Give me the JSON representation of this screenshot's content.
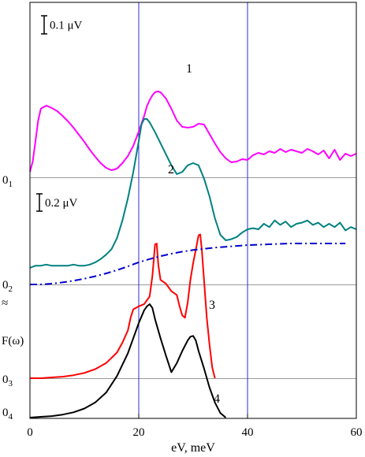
{
  "chart_data": {
    "type": "line",
    "xlabel": "eV, meV",
    "ylabel": "F(ω)",
    "xlim": [
      0,
      60
    ],
    "x_ticks": [
      "0",
      "20",
      "40",
      "60"
    ],
    "vertical_lines_at": [
      20,
      40
    ],
    "scale_bars": [
      {
        "text": "0.1 μV",
        "applies_to": "1"
      },
      {
        "text": "0.2 μV",
        "applies_to": "2"
      }
    ],
    "baseline_labels": [
      {
        "id": "1",
        "text": "0",
        "subscript": "1"
      },
      {
        "id": "2",
        "text": "0",
        "subscript": "2"
      },
      {
        "id": "3",
        "text": "0",
        "subscript": "3"
      },
      {
        "id": "4",
        "text": "0",
        "subscript": "4"
      }
    ],
    "break_mark": "≈",
    "series": [
      {
        "id": "1",
        "label": "1",
        "color": "#ff00ff",
        "style": "solid",
        "x": [
          0,
          0.5,
          1,
          1.5,
          2,
          3,
          4,
          5,
          6,
          7,
          8,
          9,
          10,
          11,
          12,
          13,
          14,
          15,
          16,
          17,
          18,
          19,
          20,
          21,
          21.5,
          22,
          22.5,
          23,
          23.5,
          24,
          25,
          26,
          27,
          28,
          29,
          30,
          31,
          32,
          33,
          34,
          35,
          36,
          37,
          38,
          39,
          40,
          41,
          42,
          43,
          44,
          45,
          46,
          47,
          48,
          49,
          50,
          51,
          52,
          53,
          54,
          55,
          56,
          57,
          58,
          59,
          60
        ],
        "y": [
          0.07,
          0.2,
          0.45,
          0.72,
          0.87,
          0.91,
          0.88,
          0.84,
          0.78,
          0.71,
          0.63,
          0.54,
          0.45,
          0.35,
          0.26,
          0.18,
          0.12,
          0.09,
          0.11,
          0.18,
          0.27,
          0.4,
          0.58,
          0.78,
          0.9,
          0.98,
          1.04,
          1.08,
          1.09,
          1.08,
          1.0,
          0.87,
          0.72,
          0.64,
          0.63,
          0.64,
          0.68,
          0.67,
          0.55,
          0.43,
          0.32,
          0.24,
          0.19,
          0.2,
          0.23,
          0.22,
          0.28,
          0.31,
          0.29,
          0.33,
          0.31,
          0.36,
          0.32,
          0.35,
          0.33,
          0.31,
          0.36,
          0.33,
          0.29,
          0.34,
          0.24,
          0.35,
          0.22,
          0.3,
          0.27,
          0.3
        ]
      },
      {
        "id": "2",
        "label": "2",
        "color": "#008080",
        "style": "solid",
        "x": [
          0,
          1,
          2,
          3,
          4,
          5,
          6,
          7,
          8,
          9,
          10,
          11,
          12,
          13,
          14,
          15,
          16,
          17,
          18,
          19,
          20,
          20.5,
          21,
          21.5,
          22,
          23,
          24,
          25,
          26,
          27,
          28,
          29,
          30,
          31,
          32,
          33,
          34,
          35,
          36,
          37,
          38,
          39,
          40,
          41,
          42,
          43,
          44,
          45,
          46,
          47,
          48,
          49,
          50,
          51,
          52,
          53,
          54,
          55,
          56,
          57,
          58,
          59,
          60
        ],
        "y": [
          0.15,
          0.17,
          0.17,
          0.18,
          0.17,
          0.17,
          0.17,
          0.17,
          0.18,
          0.17,
          0.17,
          0.18,
          0.2,
          0.23,
          0.27,
          0.32,
          0.42,
          0.58,
          0.78,
          1.02,
          1.3,
          1.45,
          1.5,
          1.5,
          1.47,
          1.38,
          1.28,
          1.18,
          1.08,
          1.0,
          1.02,
          1.08,
          1.1,
          1.08,
          0.96,
          0.8,
          0.6,
          0.45,
          0.4,
          0.41,
          0.43,
          0.47,
          0.5,
          0.51,
          0.5,
          0.55,
          0.52,
          0.58,
          0.54,
          0.57,
          0.52,
          0.55,
          0.56,
          0.58,
          0.54,
          0.56,
          0.52,
          0.55,
          0.52,
          0.56,
          0.49,
          0.52,
          0.5
        ]
      },
      {
        "id": "3",
        "label": "3",
        "color": "#ff0000",
        "style": "solid",
        "x": [
          0,
          2,
          4,
          6,
          8,
          10,
          12,
          14,
          16,
          17,
          18,
          18.5,
          19,
          20,
          21,
          22,
          22.5,
          23,
          23.3,
          23.6,
          24,
          25,
          26,
          27,
          27.5,
          28,
          28.5,
          29,
          29.5,
          30,
          30.5,
          31,
          31.3,
          31.6,
          32,
          32.5,
          33,
          33.5,
          34
        ],
        "y": [
          0,
          0,
          0.01,
          0.02,
          0.04,
          0.07,
          0.12,
          0.2,
          0.34,
          0.47,
          0.63,
          0.8,
          0.91,
          0.95,
          0.98,
          1.08,
          1.35,
          1.77,
          1.78,
          1.5,
          1.3,
          1.25,
          1.15,
          1.1,
          0.95,
          0.83,
          0.8,
          1.0,
          1.3,
          1.52,
          1.7,
          1.89,
          1.9,
          1.7,
          1.3,
          0.8,
          0.45,
          0.15,
          0.0
        ]
      },
      {
        "id": "4",
        "label": "4",
        "color": "#000000",
        "style": "solid",
        "x": [
          0,
          2,
          4,
          6,
          8,
          10,
          12,
          14,
          16,
          18,
          19,
          20,
          21,
          21.5,
          22,
          22.5,
          23,
          24,
          25,
          26,
          27,
          28,
          29,
          29.5,
          30,
          30.5,
          31,
          32,
          33,
          34,
          35,
          36
        ],
        "y": [
          0,
          0.01,
          0.02,
          0.04,
          0.07,
          0.12,
          0.2,
          0.33,
          0.55,
          0.85,
          1.05,
          1.25,
          1.42,
          1.47,
          1.5,
          1.45,
          1.3,
          1.05,
          0.82,
          0.6,
          0.72,
          0.88,
          1.02,
          1.07,
          1.08,
          1.02,
          0.88,
          0.65,
          0.4,
          0.2,
          0.06,
          0.0
        ]
      },
      {
        "id": "F",
        "label": "",
        "color": "#0000cc",
        "style": "dash-dot",
        "x": [
          0,
          2,
          4,
          6,
          8,
          10,
          12,
          14,
          16,
          18,
          20,
          22,
          24,
          26,
          28,
          30,
          32,
          34,
          36,
          38,
          40,
          42,
          44,
          46,
          48,
          50,
          52,
          54,
          56,
          58
        ],
        "y": [
          0.0,
          0.0,
          0.02,
          0.05,
          0.09,
          0.14,
          0.2,
          0.27,
          0.35,
          0.44,
          0.54,
          0.62,
          0.69,
          0.75,
          0.8,
          0.84,
          0.87,
          0.9,
          0.92,
          0.94,
          0.96,
          0.97,
          0.98,
          0.99,
          1.0,
          1.0,
          1.0,
          1.0,
          1.0,
          1.0
        ]
      }
    ]
  }
}
